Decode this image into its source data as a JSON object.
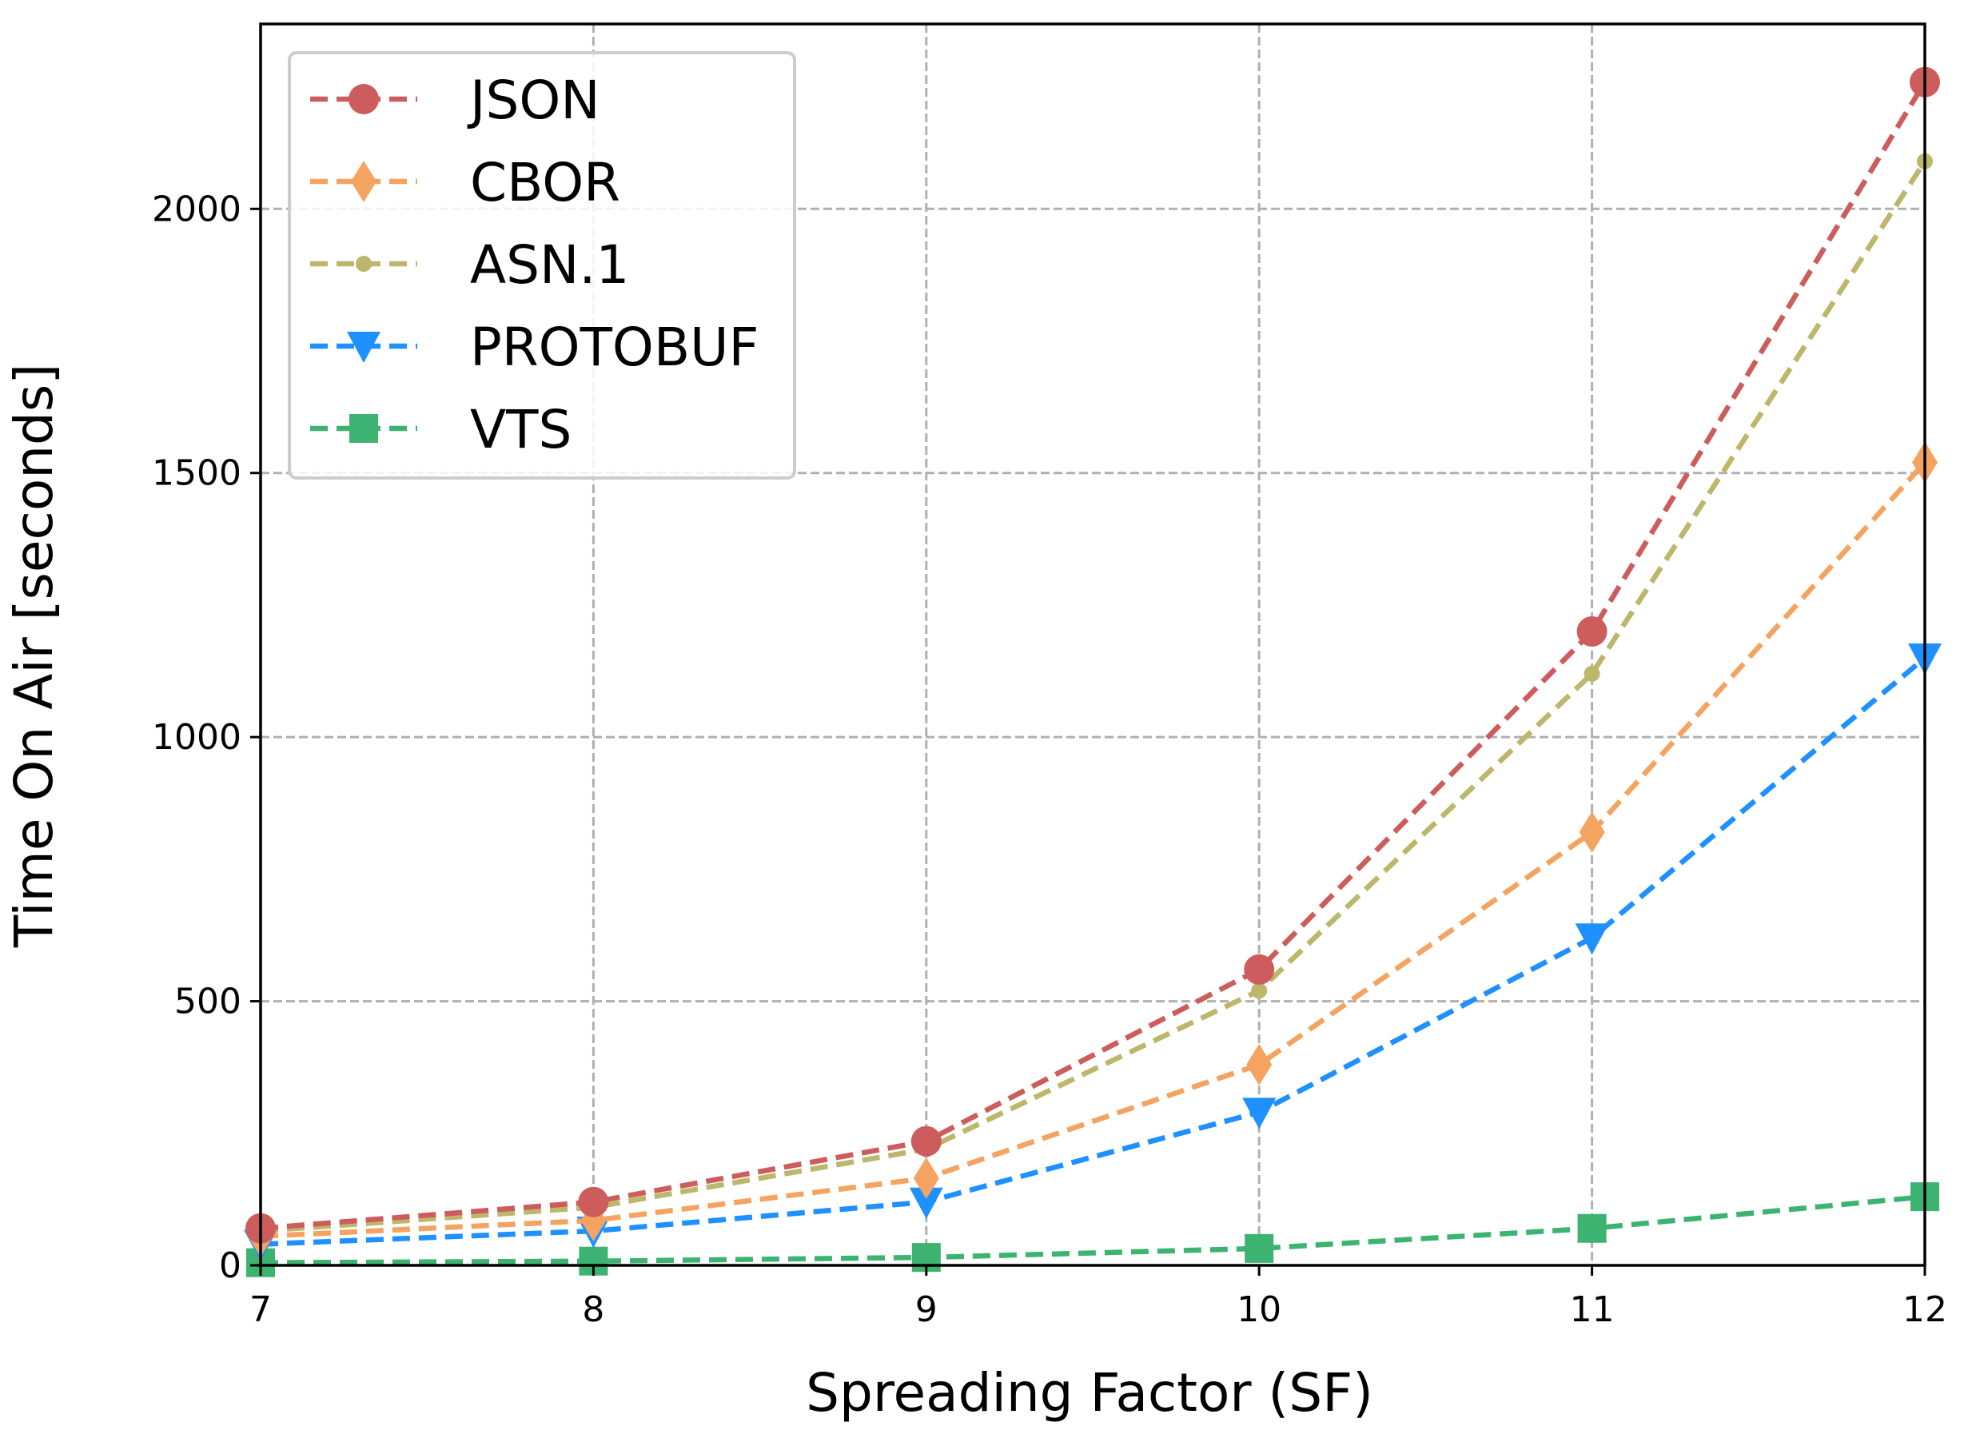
{
  "chart_data": {
    "type": "line",
    "title": "",
    "xlabel": "Spreading Factor (SF)",
    "ylabel": "Time On Air [seconds]",
    "x": [
      7,
      8,
      9,
      10,
      11,
      12
    ],
    "xlim": [
      7,
      12
    ],
    "ylim": [
      0,
      2350
    ],
    "xticks": [
      7,
      8,
      9,
      10,
      11,
      12
    ],
    "xtick_labels": [
      "7",
      "8",
      "9",
      "10",
      "11",
      "12"
    ],
    "yticks": [
      0,
      500,
      1000,
      1500,
      2000
    ],
    "ytick_labels": [
      "0",
      "500",
      "1000",
      "1500",
      "2000"
    ],
    "grid": true,
    "legend_position": "top-left",
    "series": [
      {
        "name": "JSON",
        "values": [
          70,
          120,
          235,
          560,
          1200,
          2240
        ],
        "color": "#cd5c5c",
        "marker": "circle"
      },
      {
        "name": "CBOR",
        "values": [
          55,
          85,
          165,
          380,
          820,
          1520
        ],
        "color": "#f4a460",
        "marker": "diamond"
      },
      {
        "name": "ASN.1",
        "values": [
          65,
          110,
          220,
          520,
          1120,
          2090
        ],
        "color": "#bdb76b",
        "marker": "small-circle"
      },
      {
        "name": "PROTOBUF",
        "values": [
          40,
          65,
          120,
          290,
          620,
          1150
        ],
        "color": "#1e90ff",
        "marker": "triangle-down"
      },
      {
        "name": "VTS",
        "values": [
          5,
          8,
          15,
          32,
          70,
          130
        ],
        "color": "#3cb371",
        "marker": "square"
      }
    ]
  }
}
